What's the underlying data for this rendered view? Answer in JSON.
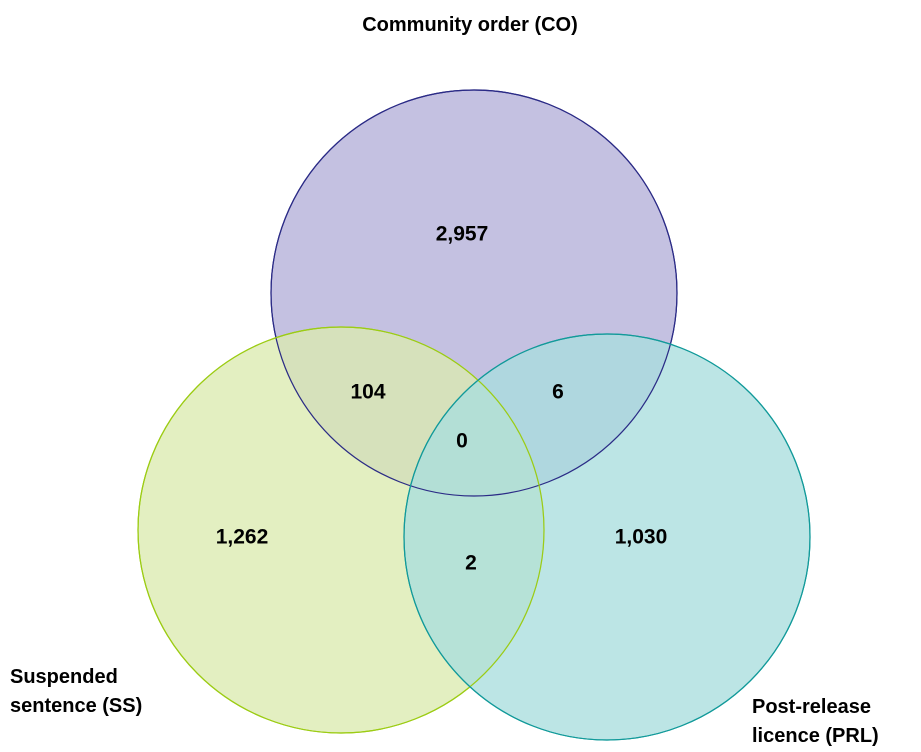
{
  "diagram": {
    "sets": {
      "co": {
        "label": "Community order (CO)",
        "fill": "#b3b0d8",
        "stroke": "#2b2b86"
      },
      "ss": {
        "label_lines": [
          "Suspended",
          "sentence (SS)"
        ],
        "fill": "#dbeab0",
        "stroke": "#9ccc14"
      },
      "prl": {
        "label_lines": [
          "Post-release",
          "licence (PRL)"
        ],
        "fill": "#a9dede",
        "stroke": "#129a9a"
      }
    },
    "regions": {
      "co_only": "2,957",
      "ss_only": "1,262",
      "prl_only": "1,030",
      "co_ss": "104",
      "co_prl": "6",
      "ss_prl": "2",
      "all": "0"
    }
  }
}
